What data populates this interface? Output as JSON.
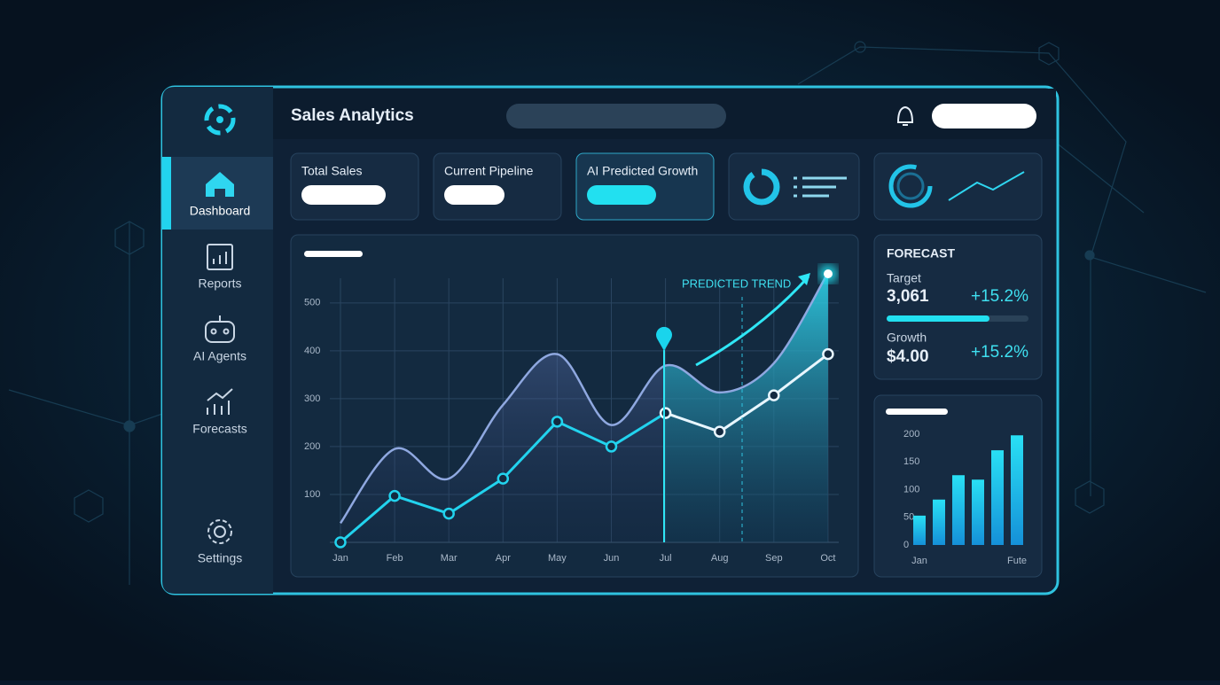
{
  "header": {
    "title": "Sales Analytics"
  },
  "sidebar": {
    "items": [
      "Dashboard",
      "Reports",
      "AI Agents",
      "Forecasts",
      "Settings"
    ]
  },
  "cards": [
    "Total Sales",
    "Current Pipeline",
    "AI Predicted Growth"
  ],
  "forecast": {
    "title": "FORECAST",
    "rows": [
      {
        "label": "Target",
        "value": "3,061",
        "change": "+15.2%"
      },
      {
        "label": "Growth",
        "value": "$4.00",
        "change": "+15.2%"
      }
    ]
  },
  "chart_data": [
    {
      "type": "line",
      "annotation": "PREDICTED TREND",
      "categories": [
        "Jan",
        "Feb",
        "Mar",
        "Apr",
        "May",
        "Jun",
        "Jul",
        "Aug",
        "Sep",
        "Oct"
      ],
      "series": [
        {
          "color": "#8fa8e0",
          "area": true,
          "values": [
            40,
            195,
            133,
            287,
            393,
            245,
            369,
            313,
            374,
            563
          ]
        },
        {
          "color": "#22d3ee",
          "values": [
            0,
            97,
            60,
            133,
            252,
            200,
            270,
            null,
            null,
            null
          ]
        },
        {
          "color": "#e8f6ff",
          "values": [
            null,
            null,
            null,
            null,
            null,
            null,
            270,
            231,
            307,
            393
          ]
        }
      ],
      "ylim": [
        0,
        570
      ],
      "yticks": [
        100,
        200,
        300,
        400,
        500
      ],
      "grid": true
    },
    {
      "type": "bar",
      "categories": [
        "Jan",
        null,
        null,
        null,
        null,
        "Fute"
      ],
      "values": [
        53,
        82,
        126,
        118,
        171,
        198
      ],
      "color": "#1fc8f0",
      "ylim": [
        0,
        200
      ],
      "yticks": [
        0,
        50,
        100,
        150,
        200
      ],
      "grid": false
    }
  ]
}
